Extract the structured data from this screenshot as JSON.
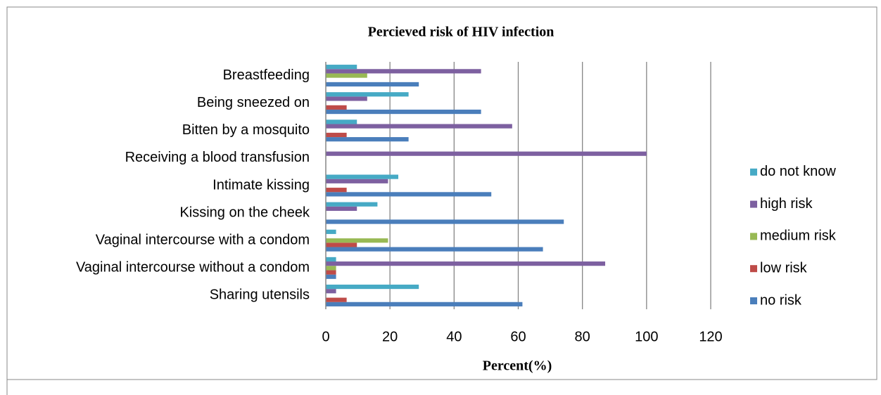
{
  "chart_data": {
    "type": "barh",
    "title": "Percieved risk of HIV infection",
    "x_label": "Percent(%)",
    "categories": [
      "Sharing utensils",
      "Vaginal intercourse without a condom",
      "Vaginal intercourse with a condom",
      "Kissing on the cheek",
      "Intimate kissing",
      "Receiving a blood transfusion",
      "Bitten by a mosquito",
      "Being sneezed on",
      "Breastfeeding"
    ],
    "series": [
      {
        "name": "no risk",
        "color": "#4a7ebb",
        "values": [
          61.3,
          3.2,
          67.7,
          74.2,
          51.6,
          0,
          25.8,
          48.4,
          29.0
        ]
      },
      {
        "name": "low risk",
        "color": "#be4b48",
        "values": [
          6.5,
          3.2,
          9.7,
          0,
          6.5,
          0,
          6.5,
          6.5,
          0
        ]
      },
      {
        "name": "medium risk",
        "color": "#98b954",
        "values": [
          0,
          3.2,
          19.4,
          0,
          0,
          0,
          0,
          0,
          12.9
        ]
      },
      {
        "name": "high risk",
        "color": "#7d60a0",
        "values": [
          3.2,
          87.1,
          0,
          9.7,
          19.4,
          100,
          58.1,
          12.9,
          48.4
        ]
      },
      {
        "name": "do not know",
        "color": "#46aac5",
        "values": [
          29.0,
          3.2,
          3.2,
          16.1,
          22.6,
          0,
          9.7,
          25.8,
          9.7
        ]
      }
    ],
    "xlim": [
      0,
      120
    ],
    "xticks": [
      0,
      20,
      40,
      60,
      80,
      100,
      120
    ],
    "grid": true,
    "legend": "right"
  }
}
